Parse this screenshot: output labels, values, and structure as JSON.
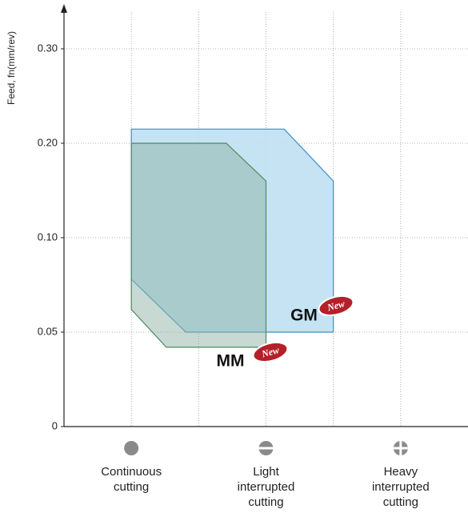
{
  "chart_data": {
    "type": "area",
    "ylabel": "Feed, fn(mm/rev)",
    "categories": [
      "Continuous cutting",
      null,
      "Light interrupted cutting",
      null,
      "Heavy interrupted cutting"
    ],
    "xlim": [
      -1,
      5
    ],
    "ylim": [
      0,
      0.3
    ],
    "yticks": [
      0,
      0.05,
      {
        "value": 0.1,
        "label": "0.10"
      },
      {
        "value": 0.2,
        "label": "0.20"
      },
      {
        "value": 0.3,
        "label": "0.30"
      }
    ],
    "grid": true,
    "series": [
      {
        "name": "GM",
        "badge": "New",
        "color": "#bfe0f2",
        "stroke": "#3a8fc8",
        "x": [
          0,
          2.27,
          3,
          3,
          0.81,
          0
        ],
        "values": [
          0.215,
          0.215,
          0.16,
          0.05,
          0.05,
          0.078
        ]
      },
      {
        "name": "MM",
        "badge": "New",
        "color": "#8fb3a6",
        "stroke": "#4a8a5a",
        "x": [
          0,
          1.41,
          2,
          2,
          0.52,
          0
        ],
        "values": [
          0.2,
          0.2,
          0.16,
          0.042,
          0.042,
          0.062
        ]
      }
    ]
  }
}
